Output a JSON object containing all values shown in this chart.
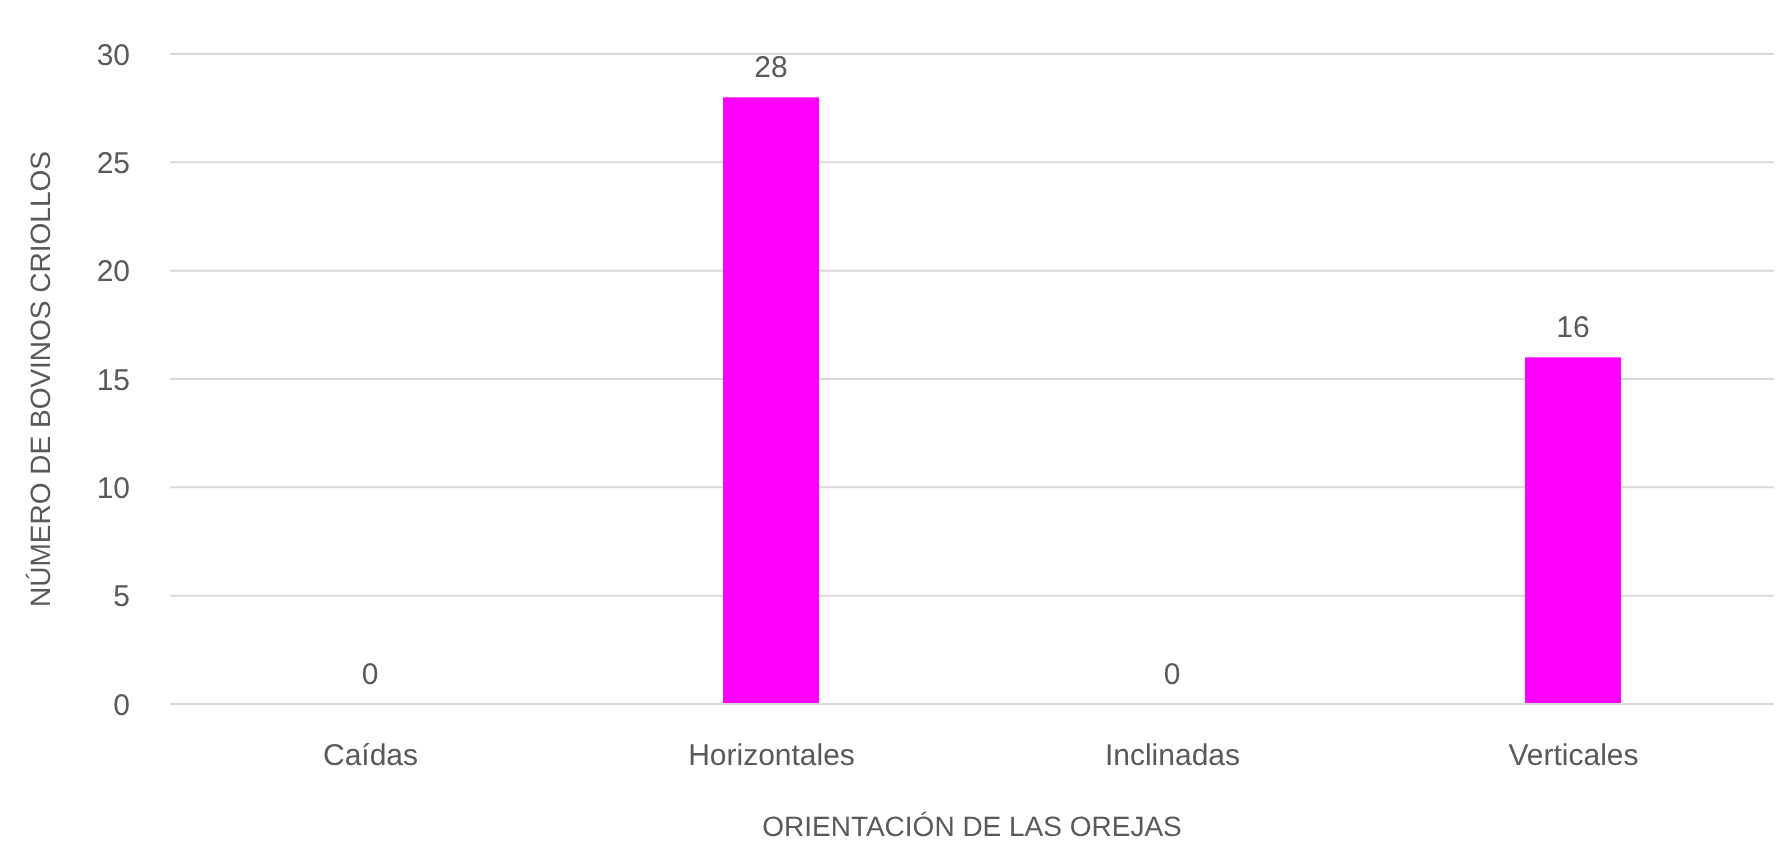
{
  "chart_data": {
    "type": "bar",
    "xlabel": "ORIENTACIÓN DE LAS OREJAS",
    "ylabel": "NÚMERO DE BOVINOS CRIOLLOS",
    "categories": [
      "Caídas",
      "Horizontales",
      "Inclinadas",
      "Verticales"
    ],
    "values": [
      0,
      28,
      0,
      16
    ],
    "color": "#ff00ff",
    "ylim": [
      0,
      30
    ],
    "yticks": [
      0,
      5,
      10,
      15,
      20,
      25,
      30
    ],
    "grid": "y",
    "data_labels": true
  }
}
